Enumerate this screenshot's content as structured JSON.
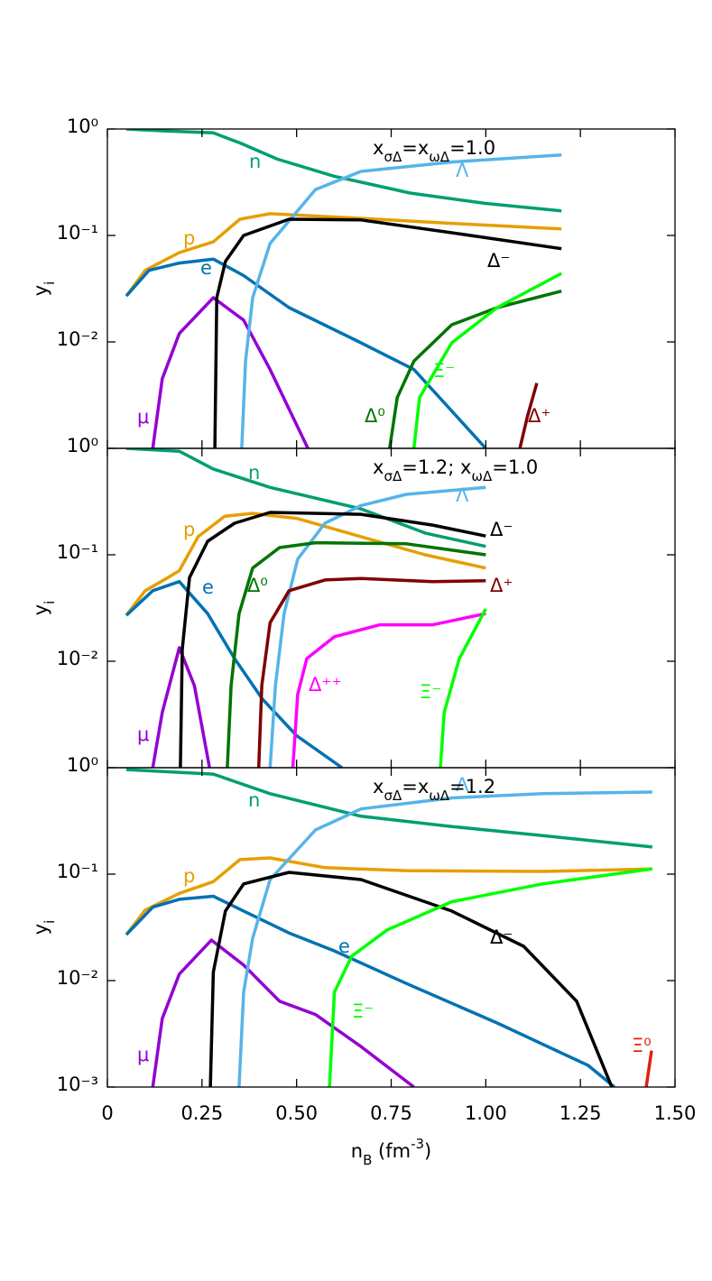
{
  "chart_data": [
    {
      "type": "line",
      "log_y": true,
      "xlim": [
        0,
        1.5
      ],
      "ylim": [
        0.001,
        1
      ],
      "yticks": [
        {
          "value": 1,
          "label": "10⁰"
        },
        {
          "value": 0.1,
          "label": "10⁻¹"
        },
        {
          "value": 0.01,
          "label": "10⁻²"
        }
      ],
      "ylabel": [
        {
          "text": "y"
        },
        {
          "text": "i",
          "shift": "sub"
        }
      ],
      "annotation": [
        {
          "text": "x"
        },
        {
          "text": "σΔ",
          "shift": "sub"
        },
        {
          "text": "=x"
        },
        {
          "text": "ωΔ",
          "shift": "sub"
        },
        {
          "text": "=1.0"
        }
      ],
      "series": [
        {
          "name": "n",
          "color": "#009e73",
          "x": [
            0.05,
            0.15,
            0.28,
            0.35,
            0.45,
            0.6,
            0.8,
            1.0,
            1.2
          ],
          "values": [
            1.0,
            0.96,
            0.92,
            0.74,
            0.52,
            0.36,
            0.25,
            0.2,
            0.17
          ]
        },
        {
          "name": "p",
          "color": "#e69f00",
          "x": [
            0.05,
            0.1,
            0.19,
            0.28,
            0.35,
            0.43,
            0.67,
            0.91,
            1.2
          ],
          "values": [
            0.027,
            0.047,
            0.069,
            0.087,
            0.142,
            0.16,
            0.145,
            0.13,
            0.115
          ]
        },
        {
          "name": "e",
          "color": "#0072b2",
          "x": [
            0.05,
            0.11,
            0.19,
            0.28,
            0.36,
            0.48,
            0.67,
            0.81,
            1.0
          ],
          "values": [
            0.027,
            0.047,
            0.055,
            0.06,
            0.042,
            0.021,
            0.0098,
            0.0055,
            0.001
          ]
        },
        {
          "name": "μ",
          "color": "#9400d3",
          "x": [
            0.12,
            0.145,
            0.19,
            0.28,
            0.36,
            0.43,
            0.53
          ],
          "values": [
            0.001,
            0.0045,
            0.012,
            0.026,
            0.016,
            0.0055,
            0.001
          ]
        },
        {
          "name": "Λ",
          "color": "#56b4e9",
          "x": [
            0.355,
            0.365,
            0.384,
            0.43,
            0.55,
            0.67,
            0.91,
            1.2
          ],
          "values": [
            0.001,
            0.0066,
            0.026,
            0.084,
            0.27,
            0.4,
            0.49,
            0.57
          ]
        },
        {
          "name": "Δ⁻",
          "color": "#000000",
          "x": [
            0.284,
            0.289,
            0.312,
            0.36,
            0.48,
            0.67,
            0.91,
            1.2
          ],
          "values": [
            0.001,
            0.026,
            0.057,
            0.1,
            0.142,
            0.14,
            0.106,
            0.075
          ]
        },
        {
          "name": "Δ⁰",
          "color": "#007400",
          "x": [
            0.746,
            0.766,
            0.81,
            0.91,
            1.03,
            1.2
          ],
          "values": [
            0.001,
            0.003,
            0.0066,
            0.0145,
            0.021,
            0.03
          ]
        },
        {
          "name": "Ξ⁻",
          "color": "#00ff00",
          "x": [
            0.81,
            0.825,
            0.91,
            1.03,
            1.2
          ],
          "values": [
            0.001,
            0.003,
            0.0098,
            0.021,
            0.044
          ]
        },
        {
          "name": "Δ⁺",
          "color": "#800000",
          "x": [
            1.09,
            1.11,
            1.135
          ],
          "values": [
            0.001,
            0.002,
            0.0041
          ]
        }
      ]
    },
    {
      "type": "line",
      "log_y": true,
      "xlim": [
        0,
        1.5
      ],
      "ylim": [
        0.001,
        1
      ],
      "yticks": [
        {
          "value": 1,
          "label": "10⁰"
        },
        {
          "value": 0.1,
          "label": "10⁻¹"
        },
        {
          "value": 0.01,
          "label": "10⁻²"
        }
      ],
      "ylabel": [
        {
          "text": "y"
        },
        {
          "text": "i",
          "shift": "sub"
        }
      ],
      "annotation": [
        {
          "text": "x"
        },
        {
          "text": "σΔ",
          "shift": "sub"
        },
        {
          "text": "=1.2; x"
        },
        {
          "text": "ωΔ",
          "shift": "sub"
        },
        {
          "text": "=1.0"
        }
      ],
      "series": [
        {
          "name": "n",
          "color": "#009e73",
          "x": [
            0.05,
            0.19,
            0.28,
            0.43,
            0.67,
            0.84,
            1.0
          ],
          "values": [
            1.0,
            0.94,
            0.64,
            0.43,
            0.27,
            0.16,
            0.12
          ]
        },
        {
          "name": "p",
          "color": "#e69f00",
          "x": [
            0.05,
            0.1,
            0.16,
            0.19,
            0.24,
            0.31,
            0.384,
            0.5,
            0.67,
            0.84,
            1.0
          ],
          "values": [
            0.027,
            0.046,
            0.061,
            0.071,
            0.148,
            0.23,
            0.245,
            0.22,
            0.148,
            0.1,
            0.075
          ]
        },
        {
          "name": "e",
          "color": "#0072b2",
          "x": [
            0.05,
            0.12,
            0.19,
            0.265,
            0.336,
            0.41,
            0.5,
            0.62
          ],
          "values": [
            0.027,
            0.046,
            0.056,
            0.028,
            0.0106,
            0.0044,
            0.002,
            0.001
          ]
        },
        {
          "name": "μ",
          "color": "#9400d3",
          "x": [
            0.12,
            0.145,
            0.19,
            0.23,
            0.27
          ],
          "values": [
            0.001,
            0.0033,
            0.0134,
            0.0059,
            0.001
          ]
        },
        {
          "name": "Λ",
          "color": "#56b4e9",
          "x": [
            0.43,
            0.444,
            0.467,
            0.503,
            0.575,
            0.67,
            0.79,
            1.0
          ],
          "values": [
            0.001,
            0.0059,
            0.028,
            0.091,
            0.198,
            0.29,
            0.37,
            0.43
          ]
        },
        {
          "name": "Δ⁻",
          "color": "#000000",
          "x": [
            0.193,
            0.198,
            0.217,
            0.265,
            0.336,
            0.43,
            0.67,
            0.86,
            1.0
          ],
          "values": [
            0.001,
            0.013,
            0.061,
            0.134,
            0.198,
            0.25,
            0.24,
            0.19,
            0.15
          ]
        },
        {
          "name": "Δ⁰",
          "color": "#007400",
          "x": [
            0.317,
            0.327,
            0.348,
            0.384,
            0.455,
            0.55,
            0.79,
            1.0
          ],
          "values": [
            0.001,
            0.0059,
            0.028,
            0.075,
            0.117,
            0.13,
            0.127,
            0.1
          ]
        },
        {
          "name": "Δ⁺",
          "color": "#800000",
          "x": [
            0.4,
            0.408,
            0.43,
            0.48,
            0.575,
            0.67,
            0.86,
            1.0
          ],
          "values": [
            0.001,
            0.0059,
            0.023,
            0.046,
            0.058,
            0.06,
            0.056,
            0.057
          ]
        },
        {
          "name": "Δ⁺⁺",
          "color": "#ff00ff",
          "x": [
            0.49,
            0.503,
            0.527,
            0.6,
            0.72,
            0.86,
            1.0
          ],
          "values": [
            0.001,
            0.0049,
            0.0106,
            0.017,
            0.022,
            0.022,
            0.028
          ]
        },
        {
          "name": "Ξ⁻",
          "color": "#00ff00",
          "x": [
            0.88,
            0.89,
            0.93,
            1.0
          ],
          "values": [
            0.001,
            0.0033,
            0.0106,
            0.031
          ]
        }
      ]
    },
    {
      "type": "line",
      "log_y": true,
      "xlim": [
        0,
        1.5
      ],
      "ylim": [
        0.001,
        1
      ],
      "yticks": [
        {
          "value": 1,
          "label": "10⁰"
        },
        {
          "value": 0.1,
          "label": "10⁻¹"
        },
        {
          "value": 0.01,
          "label": "10⁻²"
        },
        {
          "value": 0.001,
          "label": "10⁻³"
        }
      ],
      "xticks": [
        0,
        {
          "value": 0.25,
          "label": "0.25"
        },
        {
          "value": 0.5,
          "label": "0.50"
        },
        {
          "value": 0.75,
          "label": "0.75"
        },
        {
          "value": 1,
          "label": "1.00"
        },
        {
          "value": 1.25,
          "label": "1.25"
        },
        {
          "value": 1.5,
          "label": "1.50"
        }
      ],
      "xlabel": [
        {
          "text": "n"
        },
        {
          "text": "B",
          "shift": "sub"
        },
        {
          "text": " (fm"
        },
        {
          "text": "-3",
          "shift": "super"
        },
        {
          "text": ")"
        }
      ],
      "ylabel": [
        {
          "text": "y"
        },
        {
          "text": "i",
          "shift": "sub"
        }
      ],
      "annotation": [
        {
          "text": "x"
        },
        {
          "text": "σΔ",
          "shift": "sub"
        },
        {
          "text": "=x"
        },
        {
          "text": "ωΔ",
          "shift": "sub"
        },
        {
          "text": "=1.2"
        }
      ],
      "series": [
        {
          "name": "n",
          "color": "#009e73",
          "x": [
            0.05,
            0.28,
            0.43,
            0.67,
            0.91,
            1.15,
            1.44
          ],
          "values": [
            0.96,
            0.87,
            0.57,
            0.35,
            0.28,
            0.23,
            0.18
          ]
        },
        {
          "name": "p",
          "color": "#e69f00",
          "x": [
            0.05,
            0.1,
            0.19,
            0.28,
            0.35,
            0.43,
            0.575,
            0.79,
            1.15,
            1.44
          ],
          "values": [
            0.027,
            0.046,
            0.066,
            0.085,
            0.137,
            0.142,
            0.115,
            0.108,
            0.106,
            0.112
          ]
        },
        {
          "name": "e",
          "color": "#0072b2",
          "x": [
            0.05,
            0.12,
            0.19,
            0.28,
            0.36,
            0.48,
            0.6,
            0.79,
            1.03,
            1.27,
            1.34
          ],
          "values": [
            0.027,
            0.049,
            0.058,
            0.062,
            0.045,
            0.028,
            0.019,
            0.0094,
            0.004,
            0.0016,
            0.001
          ]
        },
        {
          "name": "μ",
          "color": "#9400d3",
          "x": [
            0.12,
            0.145,
            0.19,
            0.275,
            0.36,
            0.455,
            0.55,
            0.67,
            0.81
          ],
          "values": [
            0.001,
            0.0044,
            0.0115,
            0.024,
            0.014,
            0.0064,
            0.0048,
            0.0024,
            0.001
          ]
        },
        {
          "name": "Λ",
          "color": "#56b4e9",
          "x": [
            0.348,
            0.36,
            0.384,
            0.43,
            0.55,
            0.67,
            0.91,
            1.15,
            1.44
          ],
          "values": [
            0.001,
            0.0078,
            0.025,
            0.089,
            0.26,
            0.41,
            0.52,
            0.57,
            0.59
          ]
        },
        {
          "name": "Δ⁻",
          "color": "#000000",
          "x": [
            0.272,
            0.28,
            0.312,
            0.36,
            0.48,
            0.67,
            0.91,
            1.1,
            1.24,
            1.333
          ],
          "values": [
            0.001,
            0.012,
            0.045,
            0.081,
            0.104,
            0.089,
            0.045,
            0.021,
            0.0064,
            0.001
          ]
        },
        {
          "name": "Ξ⁻",
          "color": "#00ff00",
          "x": [
            0.587,
            0.6,
            0.646,
            0.74,
            0.91,
            1.15,
            1.44
          ],
          "values": [
            0.001,
            0.0078,
            0.017,
            0.03,
            0.055,
            0.081,
            0.112
          ]
        },
        {
          "name": "Ξ⁰",
          "color": "#e51e10",
          "x": [
            1.424,
            1.438
          ],
          "values": [
            0.001,
            0.0022
          ]
        }
      ]
    }
  ]
}
